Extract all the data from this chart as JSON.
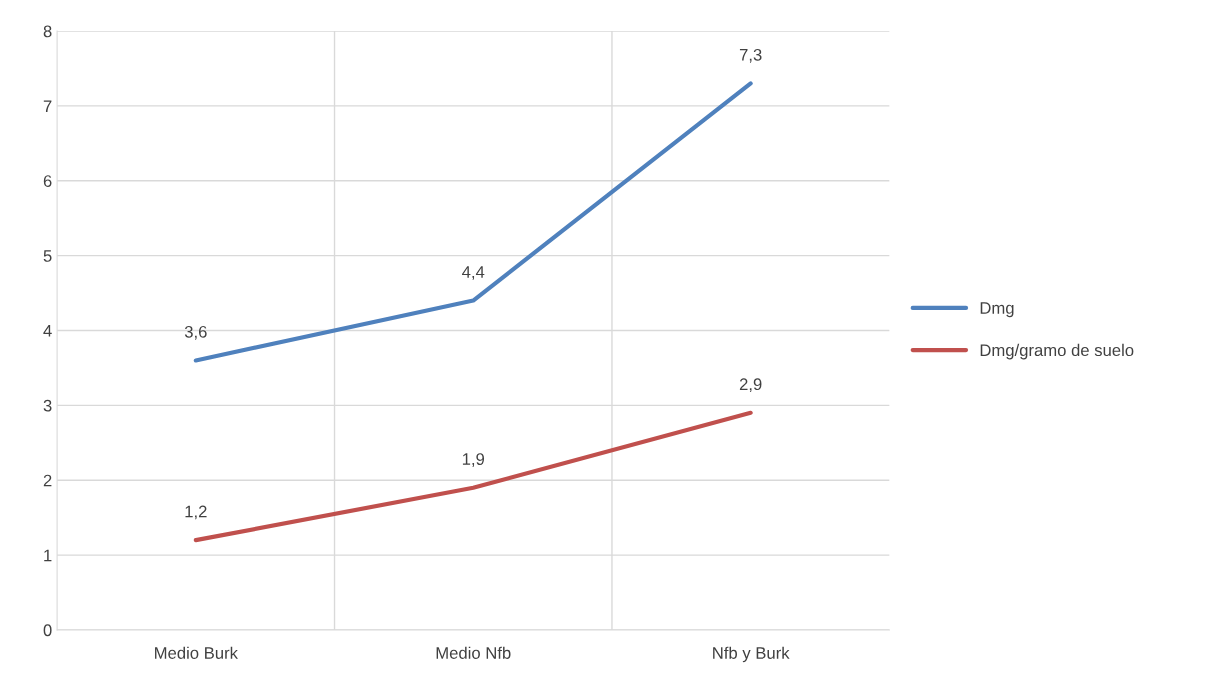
{
  "chart_data": {
    "type": "line",
    "categories": [
      "Medio Burk",
      "Medio Nfb",
      "Nfb y Burk"
    ],
    "series": [
      {
        "name": "Dmg",
        "color": "#4f81bd",
        "values": [
          3.6,
          4.4,
          7.3
        ],
        "value_labels": [
          "3,6",
          "4,4",
          "7,3"
        ]
      },
      {
        "name": "Dmg/gramo de suelo",
        "color": "#c0504d",
        "values": [
          1.2,
          1.9,
          2.9
        ],
        "value_labels": [
          "1,2",
          "1,9",
          "2,9"
        ]
      }
    ],
    "ylim": [
      0,
      8
    ],
    "yticks": [
      0,
      1,
      2,
      3,
      4,
      5,
      6,
      7,
      8
    ],
    "grid": true,
    "legend": "right",
    "marker": "none",
    "line_style": "solid"
  }
}
